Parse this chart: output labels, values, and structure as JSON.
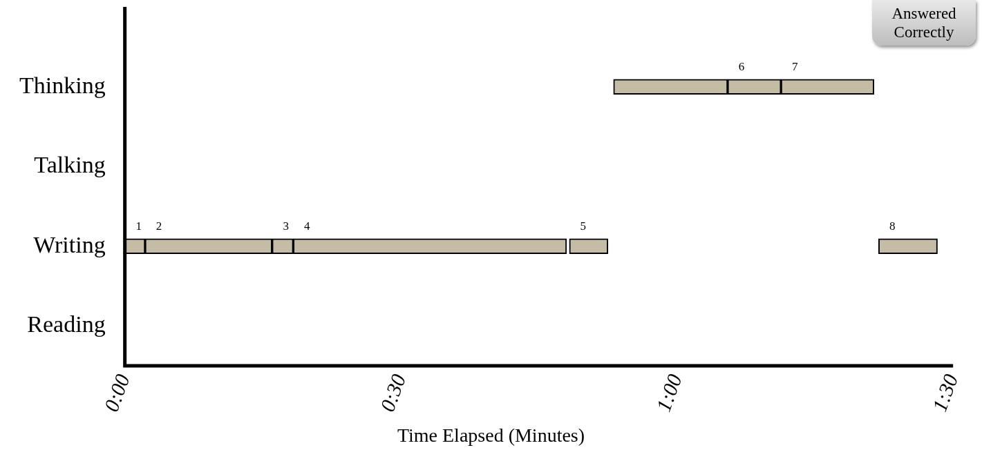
{
  "chart_data": {
    "type": "bar",
    "orientation": "horizontal",
    "xlabel": "Time Elapsed (Minutes)",
    "categories": [
      "Thinking",
      "Talking",
      "Writing",
      "Reading"
    ],
    "series": [
      {
        "color": "#c4bca4",
        "values": [
          12.4,
          null,
          2.2,
          null
        ],
        "base": [
          53.1,
          null,
          0,
          null
        ]
      },
      {
        "color": "#c4bca4",
        "values": [
          5.8,
          null,
          13.8,
          null
        ],
        "base": [
          65.5,
          null,
          2.2,
          null
        ]
      },
      {
        "color": "#c4bca4",
        "values": [
          10.1,
          null,
          2.3,
          null
        ],
        "base": [
          71.3,
          null,
          16.0,
          null
        ]
      },
      {
        "color": "#c4bca4",
        "values": [
          null,
          null,
          29.7,
          null
        ],
        "base": [
          null,
          null,
          18.3,
          null
        ]
      },
      {
        "color": "#c4bca4",
        "values": [
          null,
          null,
          4.2,
          null
        ],
        "base": [
          null,
          null,
          48.3,
          null
        ]
      },
      {
        "color": "#c4bca4",
        "values": [
          null,
          null,
          6.4,
          null
        ],
        "base": [
          null,
          null,
          81.9,
          null
        ]
      }
    ],
    "xlim": [
      0,
      90
    ],
    "xticks": [
      {
        "value": 0,
        "label": "0:00"
      },
      {
        "value": 30,
        "label": "0:30"
      },
      {
        "value": 60,
        "label": "1:00"
      },
      {
        "value": 90,
        "label": "1:30"
      }
    ],
    "annotations": [
      "Answered Correctly",
      {
        "text": "1",
        "x": 0,
        "y": "Writing"
      },
      {
        "text": "2",
        "x": 2.2,
        "y": "Writing"
      },
      {
        "text": "3",
        "x": 16.0,
        "y": "Writing"
      },
      {
        "text": "4",
        "x": 18.3,
        "y": "Writing"
      },
      {
        "text": "5",
        "x": 48.3,
        "y": "Writing"
      },
      {
        "text": "6",
        "x": 65.5,
        "y": "Thinking"
      },
      {
        "text": "7",
        "x": 71.3,
        "y": "Thinking"
      },
      {
        "text": "8",
        "x": 81.9,
        "y": "Writing"
      }
    ],
    "grid": false,
    "legend": false
  }
}
